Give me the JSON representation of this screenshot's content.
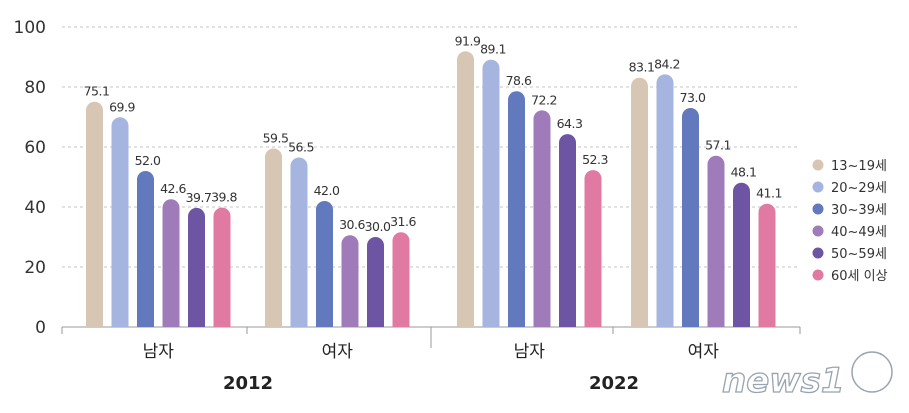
{
  "chart_data": {
    "type": "bar",
    "title": "",
    "xlabel": "",
    "ylabel": "",
    "ylim": [
      0,
      100
    ],
    "yticks": [
      0,
      20,
      40,
      60,
      80,
      100
    ],
    "grid": true,
    "legend_position": "right",
    "years": [
      "2012",
      "2022"
    ],
    "groups": [
      {
        "year": "2012",
        "label": "남자",
        "values": [
          75.1,
          69.9,
          52.0,
          42.6,
          39.7,
          39.8
        ]
      },
      {
        "year": "2012",
        "label": "여자",
        "values": [
          59.5,
          56.5,
          42.0,
          30.6,
          30.0,
          31.6
        ]
      },
      {
        "year": "2022",
        "label": "남자",
        "values": [
          91.9,
          89.1,
          78.6,
          72.2,
          64.3,
          52.3
        ]
      },
      {
        "year": "2022",
        "label": "여자",
        "values": [
          83.1,
          84.2,
          73.0,
          57.1,
          48.1,
          41.1
        ]
      }
    ],
    "value_labels": [
      [
        "75.1",
        "69.9",
        "52.0",
        "42.6",
        "39.7",
        "39.8"
      ],
      [
        "59.5",
        "56.5",
        "42.0",
        "30.6",
        "30.0",
        "31.6"
      ],
      [
        "91.9",
        "89.1",
        "78.6",
        "72.2",
        "64.3",
        "52.3"
      ],
      [
        "83.1",
        "84.2",
        "73.0",
        "57.1",
        "48.1",
        "41.1"
      ]
    ],
    "series": [
      {
        "name": "13~19세",
        "color": "#d8c6b4"
      },
      {
        "name": "20~29세",
        "color": "#a6b4e0"
      },
      {
        "name": "30~39세",
        "color": "#6279be"
      },
      {
        "name": "40~49세",
        "color": "#9f7bb9"
      },
      {
        "name": "50~59세",
        "color": "#6e55a3"
      },
      {
        "name": "60세 이상",
        "color": "#e07aa2"
      }
    ]
  },
  "watermark": "news1"
}
